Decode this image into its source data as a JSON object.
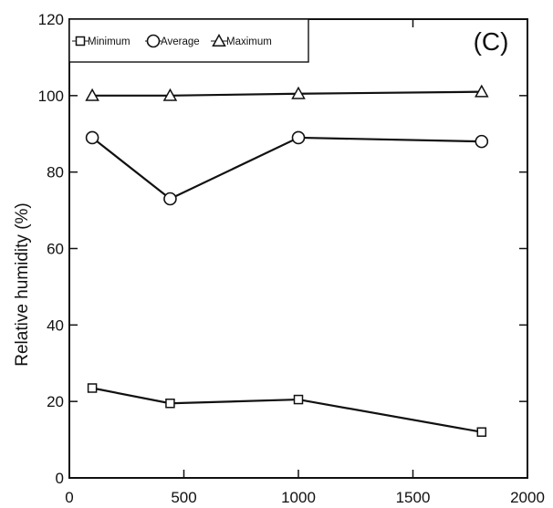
{
  "chart_data": {
    "type": "line",
    "panel_label": "(C)",
    "ylabel": "Relative humidity (%)",
    "xlabel": "",
    "xlim": [
      0,
      2000
    ],
    "ylim": [
      0,
      120
    ],
    "xticks": [
      0,
      500,
      1000,
      1500,
      2000
    ],
    "yticks": [
      0,
      20,
      40,
      60,
      80,
      100,
      120
    ],
    "grid": false,
    "legend_position": "top-left",
    "x": [
      100,
      440,
      1000,
      1800
    ],
    "series": [
      {
        "name": "Minimum",
        "marker": "square",
        "values": [
          23.5,
          19.5,
          20.5,
          12
        ]
      },
      {
        "name": "Average",
        "marker": "circle",
        "values": [
          89,
          73,
          89,
          88
        ]
      },
      {
        "name": "Maximum",
        "marker": "triangle",
        "values": [
          100,
          100,
          100.5,
          101
        ]
      }
    ],
    "colors": {
      "line": "#111111",
      "marker_fill": "#ffffff"
    }
  }
}
